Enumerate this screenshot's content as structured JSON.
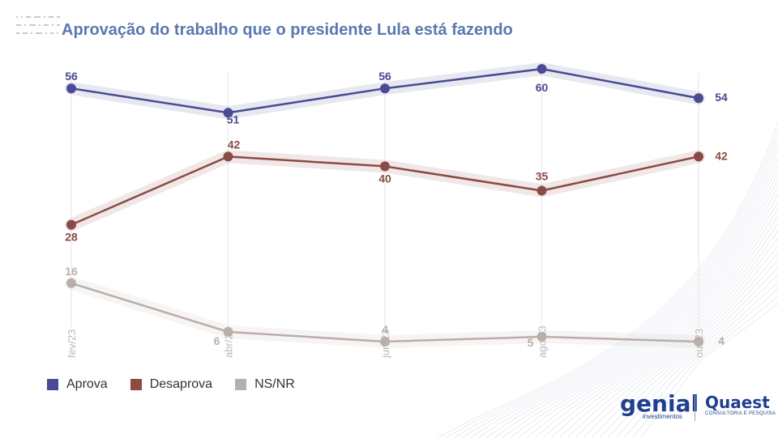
{
  "title": "Aprovação do trabalho que o presidente Lula está fazendo",
  "brands": {
    "genial": {
      "name": "genial",
      "sub": "investimentos"
    },
    "quaest": {
      "name": "Quaest",
      "sub": "CONSULTORIA E PESQUISA"
    }
  },
  "colors": {
    "aprova": "#4b4a94",
    "desaprova": "#8c4a45",
    "nsnr": "#b9aea9",
    "title": "#5a78b0",
    "grid": "#e6e6e6",
    "xlabel": "#b8b8b8"
  },
  "chart_data": {
    "type": "line",
    "title": "Aprovação do trabalho que o presidente Lula está fazendo",
    "x": [
      "fev/23",
      "abr/23",
      "jun/23",
      "ago/23",
      "out/23"
    ],
    "ylim": [
      0,
      70
    ],
    "grid": "vertical",
    "legend_position": "bottom-left",
    "series": [
      {
        "name": "Aprova",
        "key": "aprova",
        "values": [
          56,
          51,
          56,
          60,
          54
        ]
      },
      {
        "name": "Desaprova",
        "key": "desaprova",
        "values": [
          28,
          42,
          40,
          35,
          42
        ]
      },
      {
        "name": "NS/NR",
        "key": "nsnr",
        "values": [
          16,
          6,
          4,
          5,
          4
        ]
      }
    ]
  }
}
